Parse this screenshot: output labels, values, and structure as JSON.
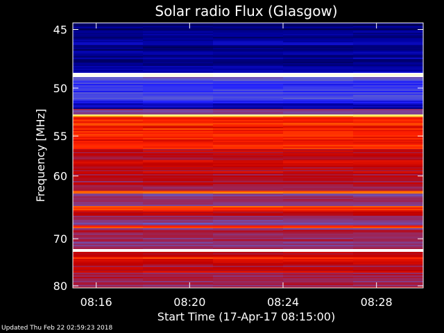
{
  "chart_data": {
    "type": "heatmap",
    "title": "Solar radio Flux (Glasgow)",
    "xlabel": "Start Time (17-Apr-17 08:15:00)",
    "ylabel": "Frequency [MHz]",
    "x_range_minutes": [
      0,
      15
    ],
    "x_ticks": [
      {
        "minute": 1,
        "label": "08:16"
      },
      {
        "minute": 5,
        "label": "08:20"
      },
      {
        "minute": 9,
        "label": "08:24"
      },
      {
        "minute": 13,
        "label": "08:28"
      }
    ],
    "y_range_mhz": [
      44.5,
      80.5
    ],
    "y_scale": "reciprocal",
    "y_ticks": [
      45,
      50,
      55,
      60,
      70,
      80
    ],
    "colormap": [
      "#000040",
      "#0000a0",
      "#2020ff",
      "#6060d0",
      "#903070",
      "#c00000",
      "#ff2000",
      "#ff8000",
      "#ffff80",
      "#ffffff"
    ],
    "bands": [
      {
        "from": 44.5,
        "to": 45.3,
        "level": 0.05
      },
      {
        "from": 45.3,
        "to": 48.6,
        "level": 0.1
      },
      {
        "from": 48.6,
        "to": 48.95,
        "level": 0.98
      },
      {
        "from": 48.95,
        "to": 49.4,
        "level": 0.35
      },
      {
        "from": 49.4,
        "to": 51.3,
        "level": 0.25
      },
      {
        "from": 51.3,
        "to": 52.0,
        "level": 0.15
      },
      {
        "from": 52.0,
        "to": 52.6,
        "level": 0.45
      },
      {
        "from": 52.6,
        "to": 52.9,
        "level": 0.85
      },
      {
        "from": 52.9,
        "to": 56.5,
        "level": 0.65
      },
      {
        "from": 56.5,
        "to": 59.5,
        "level": 0.55
      },
      {
        "from": 59.5,
        "to": 62.0,
        "level": 0.5
      },
      {
        "from": 62.0,
        "to": 62.5,
        "level": 0.72
      },
      {
        "from": 62.5,
        "to": 64.5,
        "level": 0.45
      },
      {
        "from": 64.5,
        "to": 65.0,
        "level": 0.72
      },
      {
        "from": 65.0,
        "to": 66.0,
        "level": 0.58
      },
      {
        "from": 66.0,
        "to": 67.5,
        "level": 0.42
      },
      {
        "from": 67.5,
        "to": 68.0,
        "level": 0.7
      },
      {
        "from": 68.0,
        "to": 72.0,
        "level": 0.45
      },
      {
        "from": 72.0,
        "to": 72.5,
        "level": 0.97
      },
      {
        "from": 72.5,
        "to": 73.5,
        "level": 0.55
      },
      {
        "from": 73.5,
        "to": 74.0,
        "level": 0.75
      },
      {
        "from": 74.0,
        "to": 77.0,
        "level": 0.55
      },
      {
        "from": 77.0,
        "to": 80.5,
        "level": 0.48
      }
    ]
  },
  "footer": {
    "updated": "Updated Thu Feb 22 02:59:23 2018"
  }
}
